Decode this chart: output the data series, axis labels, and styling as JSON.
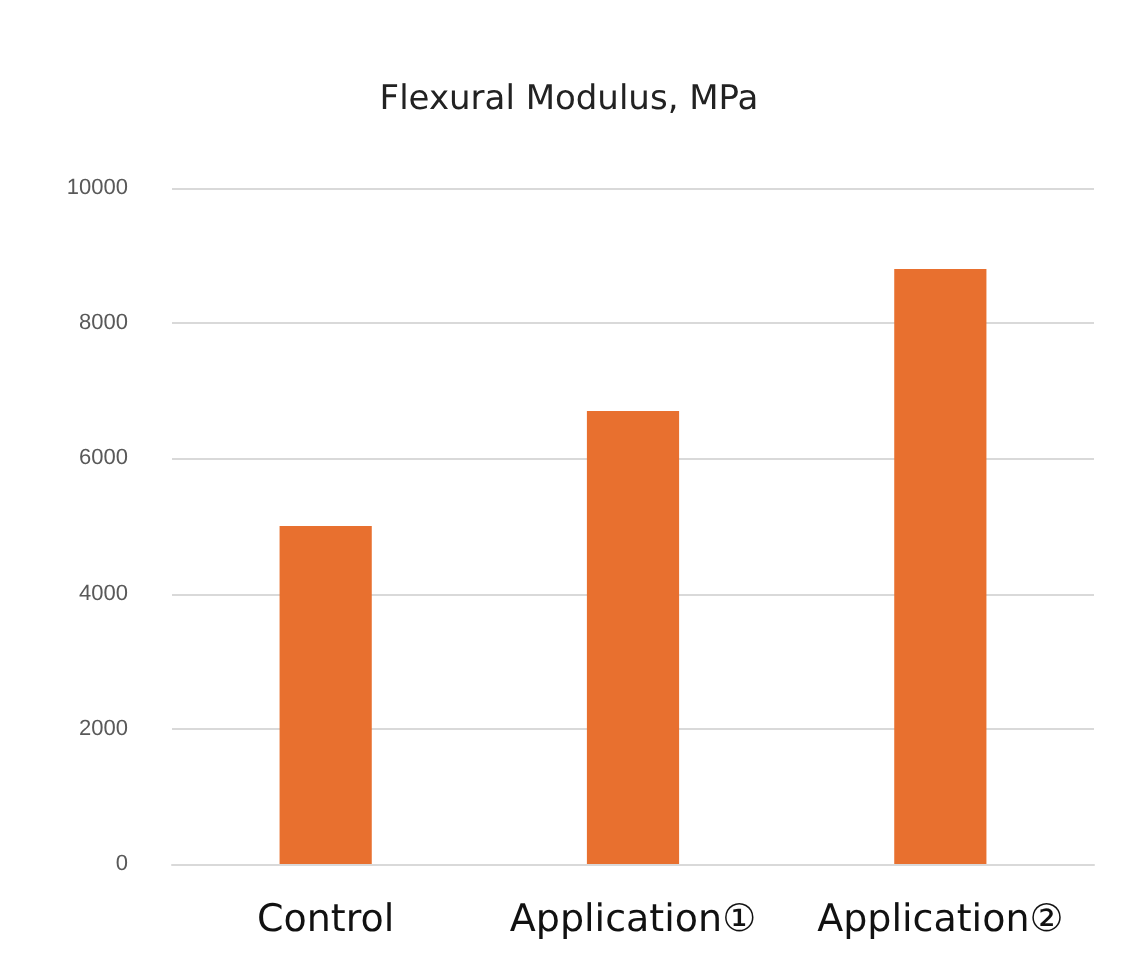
{
  "chart_data": {
    "type": "bar",
    "title": "Flexural Modulus, MPa",
    "categories": [
      "Control",
      "Application①",
      "Application②"
    ],
    "values": [
      5000,
      6700,
      8800
    ],
    "color": "#e8702f",
    "ylim": [
      0,
      10000
    ],
    "yticks": [
      0,
      2000,
      4000,
      6000,
      8000,
      10000
    ],
    "grid": "y"
  }
}
